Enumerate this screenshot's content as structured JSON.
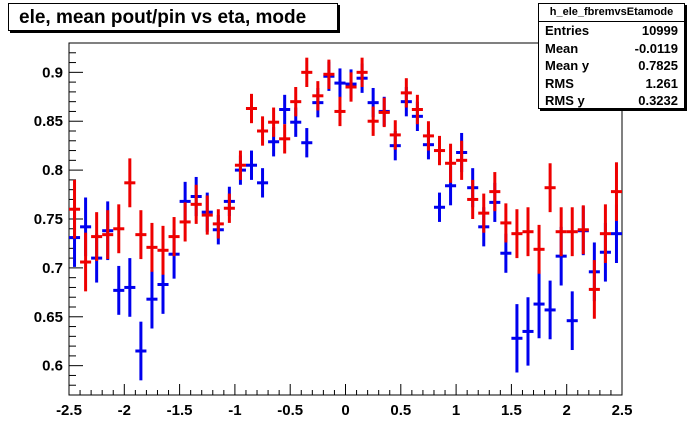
{
  "title": "ele, mean pout/pin vs eta, mode",
  "stats": {
    "name": "h_ele_fbremvsEtamode",
    "rows": [
      {
        "label": "Entries",
        "value": "10999"
      },
      {
        "label": "Mean",
        "value": "-0.0119"
      },
      {
        "label": "Mean y",
        "value": "0.7825"
      },
      {
        "label": "RMS",
        "value": "1.261"
      },
      {
        "label": "RMS y",
        "value": "0.3232"
      }
    ]
  },
  "colors": {
    "series_blue": "#0000ee",
    "series_red": "#ee0000",
    "axis": "#000000"
  },
  "chart_data": {
    "type": "scatter",
    "title": "ele, mean pout/pin vs eta, mode",
    "xlabel": "",
    "ylabel": "",
    "xlim": [
      -2.5,
      2.5
    ],
    "ylim": [
      0.57,
      0.93
    ],
    "x_ticks": [
      -2.5,
      -2,
      -1.5,
      -1,
      -0.5,
      0,
      0.5,
      1,
      1.5,
      2,
      2.5
    ],
    "x_tick_labels": [
      "-2.5",
      "-2",
      "-1.5",
      "-1",
      "-0.5",
      "0",
      "0.5",
      "1",
      "1.5",
      "2",
      "2.5"
    ],
    "y_ticks": [
      0.6,
      0.65,
      0.7,
      0.75,
      0.8,
      0.85,
      0.9
    ],
    "y_tick_labels": [
      "0.6",
      "0.65",
      "0.7",
      "0.75",
      "0.8",
      "0.85",
      "0.9"
    ],
    "bin_half_width": 0.05,
    "grid": false,
    "legend": "none",
    "series": [
      {
        "color": "#0000ee",
        "points": [
          [
            -2.45,
            0.731,
            0.03
          ],
          [
            -2.35,
            0.742,
            0.03
          ],
          [
            -2.25,
            0.71,
            0.025
          ],
          [
            -2.15,
            0.738,
            0.03
          ],
          [
            -2.05,
            0.677,
            0.025
          ],
          [
            -1.95,
            0.68,
            0.03
          ],
          [
            -1.85,
            0.615,
            0.03
          ],
          [
            -1.75,
            0.668,
            0.03
          ],
          [
            -1.65,
            0.683,
            0.03
          ],
          [
            -1.55,
            0.714,
            0.025
          ],
          [
            -1.45,
            0.768,
            0.02
          ],
          [
            -1.35,
            0.773,
            0.02
          ],
          [
            -1.25,
            0.757,
            0.02
          ],
          [
            -1.15,
            0.739,
            0.015
          ],
          [
            -1.05,
            0.768,
            0.015
          ],
          [
            -0.95,
            0.8,
            0.015
          ],
          [
            -0.85,
            0.805,
            0.015
          ],
          [
            -0.75,
            0.787,
            0.015
          ],
          [
            -0.65,
            0.829,
            0.015
          ],
          [
            -0.55,
            0.862,
            0.015
          ],
          [
            -0.45,
            0.849,
            0.015
          ],
          [
            -0.35,
            0.828,
            0.015
          ],
          [
            -0.25,
            0.869,
            0.015
          ],
          [
            -0.15,
            0.896,
            0.015
          ],
          [
            -0.05,
            0.889,
            0.015
          ],
          [
            0.05,
            0.888,
            0.015
          ],
          [
            0.15,
            0.894,
            0.015
          ],
          [
            0.25,
            0.869,
            0.015
          ],
          [
            0.35,
            0.86,
            0.015
          ],
          [
            0.45,
            0.825,
            0.015
          ],
          [
            0.55,
            0.87,
            0.015
          ],
          [
            0.65,
            0.855,
            0.015
          ],
          [
            0.75,
            0.826,
            0.015
          ],
          [
            0.85,
            0.762,
            0.015
          ],
          [
            0.95,
            0.784,
            0.02
          ],
          [
            1.05,
            0.818,
            0.02
          ],
          [
            1.15,
            0.782,
            0.02
          ],
          [
            1.25,
            0.742,
            0.02
          ],
          [
            1.35,
            0.767,
            0.02
          ],
          [
            1.45,
            0.715,
            0.02
          ],
          [
            1.55,
            0.628,
            0.035
          ],
          [
            1.65,
            0.635,
            0.035
          ],
          [
            1.75,
            0.663,
            0.035
          ],
          [
            1.85,
            0.657,
            0.03
          ],
          [
            1.95,
            0.712,
            0.03
          ],
          [
            2.05,
            0.646,
            0.03
          ],
          [
            2.15,
            0.738,
            0.025
          ],
          [
            2.25,
            0.696,
            0.03
          ],
          [
            2.35,
            0.716,
            0.03
          ],
          [
            2.45,
            0.735,
            0.03
          ]
        ]
      },
      {
        "color": "#ee0000",
        "points": [
          [
            -2.45,
            0.76,
            0.03
          ],
          [
            -2.35,
            0.706,
            0.03
          ],
          [
            -2.25,
            0.732,
            0.025
          ],
          [
            -2.15,
            0.734,
            0.025
          ],
          [
            -2.05,
            0.74,
            0.025
          ],
          [
            -1.95,
            0.787,
            0.025
          ],
          [
            -1.85,
            0.734,
            0.025
          ],
          [
            -1.75,
            0.721,
            0.025
          ],
          [
            -1.65,
            0.718,
            0.025
          ],
          [
            -1.55,
            0.732,
            0.02
          ],
          [
            -1.45,
            0.747,
            0.02
          ],
          [
            -1.35,
            0.765,
            0.02
          ],
          [
            -1.25,
            0.754,
            0.02
          ],
          [
            -1.15,
            0.745,
            0.015
          ],
          [
            -1.05,
            0.761,
            0.015
          ],
          [
            -0.95,
            0.805,
            0.015
          ],
          [
            -0.85,
            0.863,
            0.015
          ],
          [
            -0.75,
            0.84,
            0.015
          ],
          [
            -0.65,
            0.849,
            0.015
          ],
          [
            -0.55,
            0.832,
            0.015
          ],
          [
            -0.45,
            0.87,
            0.015
          ],
          [
            -0.35,
            0.9,
            0.015
          ],
          [
            -0.25,
            0.876,
            0.015
          ],
          [
            -0.15,
            0.898,
            0.015
          ],
          [
            -0.05,
            0.86,
            0.015
          ],
          [
            0.05,
            0.885,
            0.015
          ],
          [
            0.15,
            0.9,
            0.015
          ],
          [
            0.25,
            0.85,
            0.015
          ],
          [
            0.35,
            0.859,
            0.015
          ],
          [
            0.45,
            0.836,
            0.015
          ],
          [
            0.55,
            0.879,
            0.015
          ],
          [
            0.65,
            0.862,
            0.015
          ],
          [
            0.75,
            0.835,
            0.015
          ],
          [
            0.85,
            0.82,
            0.015
          ],
          [
            0.95,
            0.807,
            0.02
          ],
          [
            1.05,
            0.81,
            0.02
          ],
          [
            1.15,
            0.77,
            0.02
          ],
          [
            1.25,
            0.756,
            0.02
          ],
          [
            1.35,
            0.778,
            0.02
          ],
          [
            1.45,
            0.746,
            0.02
          ],
          [
            1.55,
            0.735,
            0.025
          ],
          [
            1.65,
            0.737,
            0.025
          ],
          [
            1.75,
            0.719,
            0.025
          ],
          [
            1.85,
            0.782,
            0.025
          ],
          [
            1.95,
            0.737,
            0.025
          ],
          [
            2.05,
            0.737,
            0.025
          ],
          [
            2.15,
            0.739,
            0.025
          ],
          [
            2.25,
            0.678,
            0.03
          ],
          [
            2.35,
            0.735,
            0.03
          ],
          [
            2.45,
            0.778,
            0.03
          ]
        ]
      }
    ]
  }
}
